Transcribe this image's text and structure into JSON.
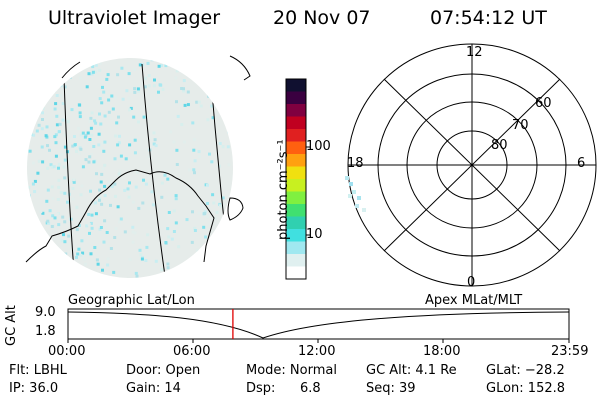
{
  "header": {
    "instrument": "Ultraviolet Imager",
    "date": "20 Nov 07",
    "time": "07:54:12 UT"
  },
  "colorbar": {
    "unit_label": "photon cm⁻²s⁻¹",
    "ticks": [
      "100",
      "10"
    ],
    "colors": [
      "#101030",
      "#3a0040",
      "#800040",
      "#c00020",
      "#e02020",
      "#ff6010",
      "#ffa010",
      "#f0e010",
      "#c8f020",
      "#80f040",
      "#40e070",
      "#30d0b0",
      "#40e0e0",
      "#a0e8f0",
      "#e0f0f0",
      "#ffffff"
    ]
  },
  "polar_plot": {
    "mlt_labels": {
      "top": "12",
      "left": "18",
      "right": "6",
      "bottom": "0"
    },
    "lat_labels": [
      "60",
      "70",
      "80"
    ]
  },
  "timeline": {
    "label_left": "Geographic Lat/Lon",
    "label_right": "Apex MLat/MLT",
    "axis_title": "GC Alt",
    "y_ticks": [
      "9.0",
      "1.8"
    ],
    "x_ticks": [
      "00:00",
      "06:00",
      "12:00",
      "18:00",
      "23:59"
    ],
    "current_time_hours": 7.9,
    "marker_color": "#e00000"
  },
  "info": {
    "filter": "Flt: LBHL",
    "door": "Door: Open",
    "mode": "Mode: Normal",
    "gc_alt": "GC Alt: 4.1 Re",
    "glat": "GLat: −28.2",
    "ip": "IP: 36.0",
    "gain": "Gain: 14",
    "dsp_label": "Dsp:",
    "dsp_value": "6.8",
    "seq": "Seq: 39",
    "glon": "GLon: 152.8"
  }
}
